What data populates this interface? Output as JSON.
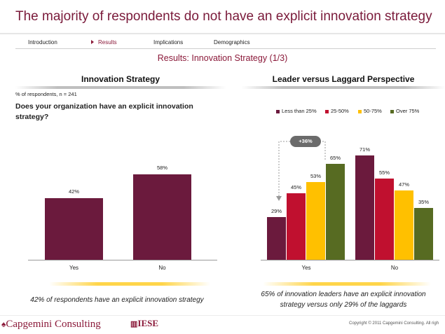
{
  "header": {
    "title": "The majority of respondents do not have an explicit innovation strategy",
    "subtitle": "Results: Innovation Strategy (1/3)"
  },
  "nav": {
    "items": [
      "Introduction",
      "Results",
      "Implications",
      "Demographics"
    ],
    "active": "Results"
  },
  "colors": {
    "brand": "#7a1a3a",
    "bar_left": "#6b1a3d",
    "series": [
      "#6b1a3d",
      "#c0102f",
      "#ffc000",
      "#576b22"
    ]
  },
  "left_panel": {
    "title": "Innovation Strategy",
    "respondents_note": "% of respondents, n = 241",
    "question": "Does your organization have an explicit innovation strategy?",
    "takeaway": "42% of respondents have an explicit innovation strategy"
  },
  "right_panel": {
    "title": "Leader versus Laggard  Perspective",
    "delta_badge": "+36%",
    "takeaway_line1": "65% of innovation leaders have an explicit innovation",
    "takeaway_line2": "strategy versus only 29% of the laggards"
  },
  "chart_data": [
    {
      "type": "bar",
      "title": "Innovation Strategy",
      "categories": [
        "Yes",
        "No"
      ],
      "values": [
        42,
        58
      ],
      "labels": [
        "42%",
        "58%"
      ],
      "ylim": [
        0,
        80
      ],
      "unit": "%"
    },
    {
      "type": "bar",
      "title": "Leader versus Laggard  Perspective",
      "categories": [
        "Yes",
        "No"
      ],
      "series": [
        {
          "name": "Less than 25%",
          "values": [
            29,
            71
          ],
          "labels": [
            "29%",
            "71%"
          ]
        },
        {
          "name": "25-50%",
          "values": [
            45,
            55
          ],
          "labels": [
            "45%",
            "55%"
          ]
        },
        {
          "name": "50-75%",
          "values": [
            53,
            47
          ],
          "labels": [
            "53%",
            "47%"
          ]
        },
        {
          "name": "Over 75%",
          "values": [
            65,
            35
          ],
          "labels": [
            "65%",
            "35%"
          ]
        }
      ],
      "annotation": "+36%",
      "legend": "top",
      "ylim": [
        0,
        80
      ],
      "unit": "%"
    }
  ],
  "footer": {
    "logo_capgemini": "Capgemini Consulting",
    "logo_iese": "IESE",
    "copyright": "Copyright © 2011 Capgemini Consulting. All righ"
  }
}
